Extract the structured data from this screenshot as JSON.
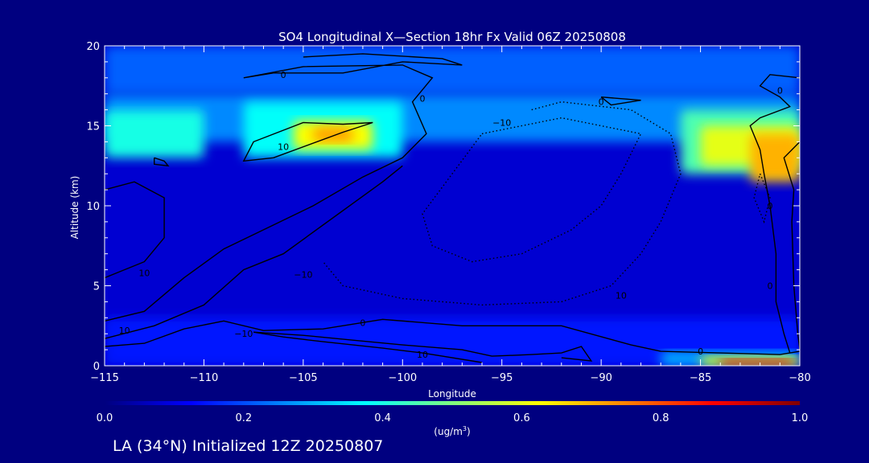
{
  "chart_data": {
    "type": "heatmap",
    "title": "SO4 Longitudinal X—Section 18hr  Fx Valid 06Z 20250808",
    "xlabel": "Longitude",
    "ylabel": "Altitude (km)",
    "xlim": [
      -115,
      -80
    ],
    "ylim": [
      0,
      20
    ],
    "x_ticks": [
      -115,
      -110,
      -105,
      -100,
      -95,
      -90,
      -85,
      -80
    ],
    "x_tick_labels": [
      "−115",
      "−110",
      "−105",
      "−100",
      "−95",
      "−90",
      "−85",
      "−80"
    ],
    "y_ticks": [
      0,
      5,
      10,
      15,
      20
    ],
    "y_tick_labels": [
      "0",
      "5",
      "10",
      "15",
      "20"
    ],
    "colorbar": {
      "min": 0.0,
      "max": 1.0,
      "ticks": [
        0.0,
        0.2,
        0.4,
        0.6,
        0.8,
        1.0
      ],
      "tick_labels": [
        "0.0",
        "0.2",
        "0.4",
        "0.6",
        "0.8",
        "1.0"
      ],
      "units_prefix": "(ug/m",
      "units_sup": "3",
      "units_suffix": ")",
      "colormap": [
        "#00007f",
        "#0000ff",
        "#007fff",
        "#00ffff",
        "#7fff7f",
        "#ffff00",
        "#ff7f00",
        "#ff0000",
        "#7f0000"
      ]
    },
    "field_regions": [
      {
        "lon": [
          -115,
          -80
        ],
        "alt": [
          0,
          20
        ],
        "value": 0.08
      },
      {
        "lon": [
          -115,
          -80
        ],
        "alt": [
          17,
          20
        ],
        "value": 0.22
      },
      {
        "lon": [
          -115,
          -80
        ],
        "alt": [
          14,
          17
        ],
        "value": 0.26
      },
      {
        "lon": [
          -115,
          -110
        ],
        "alt": [
          13,
          16
        ],
        "value": 0.4
      },
      {
        "lon": [
          -108,
          -100
        ],
        "alt": [
          13,
          16.5
        ],
        "value": 0.38
      },
      {
        "lon": [
          -105.5,
          -101.5
        ],
        "alt": [
          13.5,
          15.3
        ],
        "value": 0.62
      },
      {
        "lon": [
          -104.5,
          -102.5
        ],
        "alt": [
          14,
          14.9
        ],
        "value": 0.72
      },
      {
        "lon": [
          -86,
          -80
        ],
        "alt": [
          12,
          16
        ],
        "value": 0.45
      },
      {
        "lon": [
          -85,
          -80
        ],
        "alt": [
          12.5,
          15
        ],
        "value": 0.6
      },
      {
        "lon": [
          -82.5,
          -80
        ],
        "alt": [
          11.5,
          14.5
        ],
        "value": 0.7
      },
      {
        "lon": [
          -115,
          -80
        ],
        "alt": [
          0,
          3
        ],
        "value": 0.15
      },
      {
        "lon": [
          -87,
          -80
        ],
        "alt": [
          0,
          0.9
        ],
        "value": 0.3
      },
      {
        "lon": [
          -85,
          -80
        ],
        "alt": [
          0,
          0.6
        ],
        "value": 0.6
      },
      {
        "lon": [
          -84,
          -80.3
        ],
        "alt": [
          0,
          0.4
        ],
        "value": 0.9
      }
    ],
    "contour_labels": [
      "0",
      "0",
      "0",
      "0",
      "0",
      "0",
      "0",
      "−10",
      "10",
      "10",
      "10",
      "−10",
      "−10",
      "10",
      "10",
      "0"
    ],
    "contour_label_positions": [
      {
        "lon": -106,
        "alt": 18
      },
      {
        "lon": -99,
        "alt": 16.5
      },
      {
        "lon": -90,
        "alt": 16.3
      },
      {
        "lon": -81,
        "alt": 17
      },
      {
        "lon": -81.5,
        "alt": 9.8
      },
      {
        "lon": -81.5,
        "alt": 4.8
      },
      {
        "lon": -85,
        "alt": 0.7
      },
      {
        "lon": -95,
        "alt": 15
      },
      {
        "lon": -106,
        "alt": 13.5
      },
      {
        "lon": -113,
        "alt": 5.6
      },
      {
        "lon": -89,
        "alt": 4.2
      },
      {
        "lon": -105,
        "alt": 5.5
      },
      {
        "lon": -108,
        "alt": 1.8
      },
      {
        "lon": -114,
        "alt": 2.0
      },
      {
        "lon": -99,
        "alt": 0.5
      },
      {
        "lon": -102,
        "alt": 2.5
      }
    ],
    "contour_lines": [
      {
        "style": "solid",
        "points": [
          [
            -112.5,
            13
          ],
          [
            -112,
            12.8
          ],
          [
            -111.8,
            12.5
          ],
          [
            -112.5,
            12.6
          ],
          [
            -112.5,
            13
          ]
        ]
      },
      {
        "style": "solid",
        "points": [
          [
            -115,
            11
          ],
          [
            -113.5,
            11.5
          ],
          [
            -112,
            10.5
          ],
          [
            -112,
            8
          ],
          [
            -113,
            6.5
          ],
          [
            -115,
            5.5
          ]
        ]
      },
      {
        "style": "solid",
        "points": [
          [
            -115,
            2.8
          ],
          [
            -113,
            3.4
          ],
          [
            -111,
            5.5
          ],
          [
            -109,
            7.3
          ],
          [
            -107,
            8.5
          ],
          [
            -104.5,
            10
          ],
          [
            -102,
            11.8
          ],
          [
            -100,
            13
          ],
          [
            -98.8,
            14.5
          ],
          [
            -99.5,
            16.5
          ],
          [
            -98.5,
            18
          ],
          [
            -100,
            18.8
          ],
          [
            -105,
            18.7
          ],
          [
            -108,
            18
          ],
          [
            -106.5,
            18.3
          ],
          [
            -103,
            18.3
          ],
          [
            -100,
            19
          ],
          [
            -97,
            18.8
          ],
          [
            -98,
            19.2
          ],
          [
            -102,
            19.5
          ],
          [
            -105,
            19.3
          ]
        ]
      },
      {
        "style": "solid",
        "points": [
          [
            -115,
            1.7
          ],
          [
            -112.5,
            2.5
          ],
          [
            -110,
            3.8
          ],
          [
            -108,
            6
          ],
          [
            -106,
            7
          ],
          [
            -103,
            9.7
          ],
          [
            -101,
            11.5
          ],
          [
            -100,
            12.5
          ]
        ]
      },
      {
        "style": "solid",
        "points": [
          [
            -106.5,
            13
          ],
          [
            -103,
            14.6
          ],
          [
            -101.5,
            15.2
          ],
          [
            -103,
            15.1
          ],
          [
            -105,
            15.2
          ],
          [
            -107.5,
            14
          ],
          [
            -108,
            12.8
          ],
          [
            -106.5,
            13
          ]
        ]
      },
      {
        "style": "solid",
        "points": [
          [
            -115,
            1.2
          ],
          [
            -113,
            1.4
          ],
          [
            -111,
            2.3
          ],
          [
            -109,
            2.8
          ],
          [
            -107,
            2.2
          ],
          [
            -104,
            2.3
          ],
          [
            -101,
            2.9
          ],
          [
            -97,
            2.5
          ],
          [
            -92,
            2.5
          ],
          [
            -88.5,
            1.3
          ],
          [
            -87,
            0.9
          ],
          [
            -84,
            0.8
          ],
          [
            -81,
            0.7
          ],
          [
            -80,
            0.9
          ]
        ]
      },
      {
        "style": "solid",
        "points": [
          [
            -107.5,
            2.1
          ],
          [
            -105,
            1.9
          ],
          [
            -102.5,
            1.6
          ],
          [
            -100,
            1.3
          ],
          [
            -97,
            1.0
          ],
          [
            -95.5,
            0.6
          ],
          [
            -93.5,
            0.7
          ],
          [
            -92,
            0.8
          ],
          [
            -91,
            1.2
          ],
          [
            -90.5,
            0.3
          ],
          [
            -92,
            0.5
          ]
        ]
      },
      {
        "style": "solid",
        "points": [
          [
            -107.5,
            2.1
          ],
          [
            -106,
            1.8
          ],
          [
            -104,
            1.5
          ],
          [
            -101,
            1.1
          ],
          [
            -99,
            0.8
          ],
          [
            -96,
            0.2
          ]
        ]
      },
      {
        "style": "solid",
        "points": [
          [
            -90,
            16.8
          ],
          [
            -88,
            16.6
          ],
          [
            -89.5,
            16.3
          ],
          [
            -90,
            16.8
          ]
        ]
      },
      {
        "style": "solid",
        "points": [
          [
            -80,
            18
          ],
          [
            -81.5,
            18.2
          ],
          [
            -82,
            17.5
          ],
          [
            -81,
            16.8
          ],
          [
            -80.5,
            16.2
          ],
          [
            -82,
            15.5
          ],
          [
            -82.5,
            15
          ],
          [
            -82,
            13.5
          ],
          [
            -81.8,
            12
          ],
          [
            -81.5,
            10
          ],
          [
            -81.2,
            7
          ],
          [
            -81.2,
            4
          ],
          [
            -80.8,
            2
          ],
          [
            -80.5,
            0.8
          ]
        ]
      },
      {
        "style": "solid",
        "points": [
          [
            -80,
            14
          ],
          [
            -80.8,
            13
          ],
          [
            -80.3,
            11
          ],
          [
            -80.4,
            9
          ],
          [
            -80.3,
            5
          ],
          [
            -80.1,
            2
          ],
          [
            -80,
            1
          ]
        ]
      },
      {
        "style": "dotted",
        "points": [
          [
            -96,
            14.5
          ],
          [
            -94,
            15
          ],
          [
            -92,
            15.5
          ],
          [
            -90,
            15
          ],
          [
            -88,
            14.5
          ],
          [
            -89,
            12
          ],
          [
            -90,
            10
          ],
          [
            -91.5,
            8.5
          ],
          [
            -94,
            7
          ],
          [
            -96.5,
            6.5
          ],
          [
            -98.5,
            7.5
          ],
          [
            -99,
            9.5
          ],
          [
            -97.5,
            12
          ],
          [
            -96,
            14.5
          ]
        ]
      },
      {
        "style": "dotted",
        "points": [
          [
            -93.5,
            16
          ],
          [
            -92,
            16.5
          ],
          [
            -88.5,
            16
          ],
          [
            -86.5,
            14.5
          ],
          [
            -86,
            12
          ],
          [
            -87,
            9
          ],
          [
            -88,
            7
          ],
          [
            -89.5,
            5
          ],
          [
            -92,
            4
          ],
          [
            -96,
            3.8
          ],
          [
            -100,
            4.2
          ],
          [
            -103,
            5
          ],
          [
            -104,
            6.5
          ]
        ]
      },
      {
        "style": "dotted",
        "points": [
          [
            -82,
            12
          ],
          [
            -81.5,
            10.5
          ],
          [
            -81.8,
            9
          ],
          [
            -82.3,
            10.5
          ],
          [
            -82,
            12
          ]
        ]
      }
    ]
  }
}
